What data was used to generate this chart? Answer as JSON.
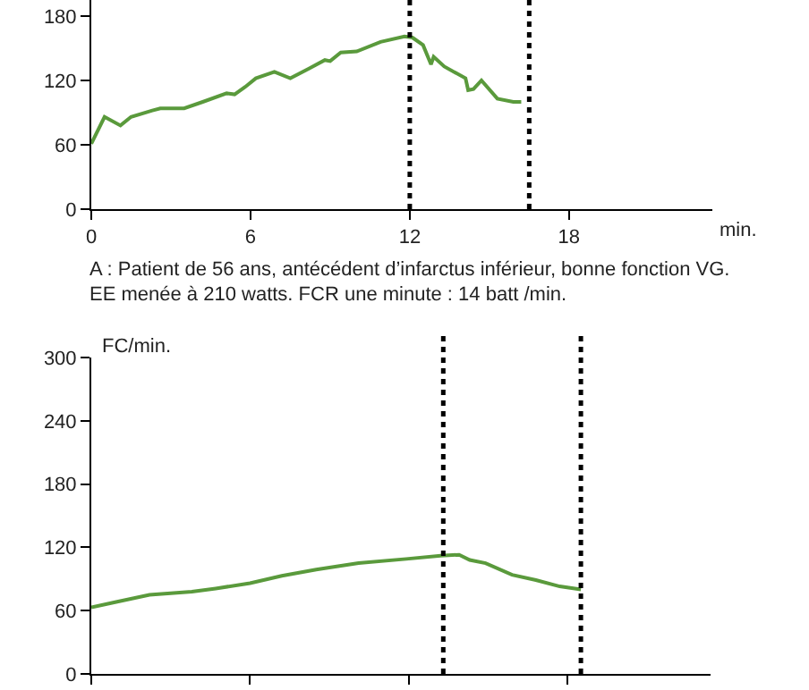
{
  "chart_data": [
    {
      "type": "line",
      "xlabel": "min.",
      "annotations": [
        "A : Patient de 56 ans, antécédent d’infarctus inférieur, bonne fonction VG.",
        "EE menée à 210 watts. FCR une minute : 14 batt /min."
      ],
      "x": [
        0,
        0.5,
        1.1,
        1.5,
        2.3,
        2.6,
        3.5,
        4.2,
        5.1,
        5.4,
        5.8,
        6.2,
        6.9,
        7.5,
        8.2,
        8.8,
        9.0,
        9.4,
        10,
        10.9,
        11.8,
        12.1,
        12.5,
        12.8,
        12.9,
        13.3,
        14.1,
        14.2,
        14.4,
        14.7,
        15.3,
        15.9,
        16.2
      ],
      "series": [
        {
          "color": "#5a9a3c",
          "values": [
            61,
            86,
            78,
            86,
            92,
            94,
            94,
            100,
            108,
            107,
            114,
            122,
            128,
            122,
            131,
            139,
            138,
            146,
            147,
            156,
            161,
            160,
            153,
            135,
            142,
            133,
            122,
            111,
            112,
            120,
            103,
            100,
            100
          ]
        }
      ],
      "xlim": [
        0,
        23.4
      ],
      "xticks": [
        0,
        6,
        12,
        18
      ],
      "ylim": [
        0,
        195
      ],
      "yticks": [
        0,
        60,
        120,
        180
      ],
      "line_style": "solid",
      "ref_lines": [
        {
          "axis": "x",
          "value": 12,
          "color": "#000000",
          "line_style": "dotted"
        },
        {
          "axis": "x",
          "value": 16.5,
          "color": "#000000",
          "line_style": "dotted"
        }
      ]
    },
    {
      "type": "line",
      "ylabel": "FC/min.",
      "tick_labels": "y",
      "x": [
        0,
        0.9,
        2.2,
        3.8,
        4.7,
        6.0,
        7.2,
        8.5,
        10.1,
        11.9,
        13.2,
        13.9,
        14.3,
        14.9,
        15.9,
        16.8,
        17.7,
        18.5
      ],
      "series": [
        {
          "color": "#5a9a3c",
          "values": [
            63,
            68,
            75,
            78,
            81,
            86,
            93,
            99,
            105,
            109,
            112,
            113,
            108,
            105,
            94,
            89,
            83,
            80
          ]
        }
      ],
      "xlim": [
        0,
        23.4
      ],
      "xticks": [
        {
          "value": 0,
          "label": null
        },
        {
          "value": 6,
          "label": null
        },
        {
          "value": 12,
          "label": null
        },
        {
          "value": 18,
          "label": null
        }
      ],
      "ylim": [
        0,
        300
      ],
      "yticks": [
        0,
        60,
        120,
        180,
        240,
        300
      ],
      "line_style": "solid",
      "ref_lines": [
        {
          "axis": "x",
          "value": 13.3,
          "color": "#000000",
          "line_style": "dotted"
        },
        {
          "axis": "x",
          "value": 18.5,
          "color": "#000000",
          "line_style": "dotted"
        }
      ]
    }
  ]
}
